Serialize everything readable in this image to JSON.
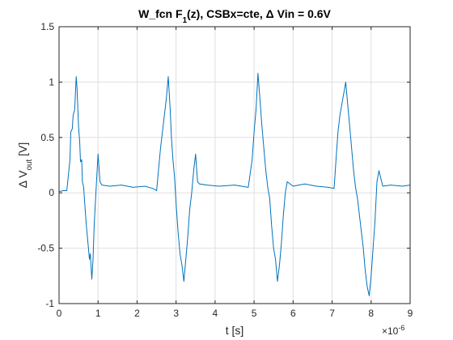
{
  "chart_data": {
    "type": "line",
    "title_parts": [
      {
        "t": "W_fcn F",
        "sub": false
      },
      {
        "t": "1",
        "sub": true
      },
      {
        "t": "(z), CSBx=cte, Δ Vin = 0.6V",
        "sub": false
      }
    ],
    "xlabel": "t [s]",
    "ylabel_parts": [
      {
        "t": "Δ V",
        "sub": false
      },
      {
        "t": "out",
        "sub": true
      },
      {
        "t": "  [V]",
        "sub": false
      }
    ],
    "x_exponent_base": "×10",
    "x_exponent": "-6",
    "xlim": [
      0,
      9
    ],
    "ylim": [
      -1,
      1.5
    ],
    "xticks": [
      0,
      1,
      2,
      3,
      4,
      5,
      6,
      7,
      8,
      9
    ],
    "xtick_labels": [
      "0",
      "1",
      "2",
      "3",
      "4",
      "5",
      "6",
      "7",
      "8",
      "9"
    ],
    "yticks": [
      -1,
      -0.5,
      0,
      0.5,
      1,
      1.5
    ],
    "ytick_labels": [
      "-1",
      "-0.5",
      "0",
      "0.5",
      "1",
      "1.5"
    ],
    "grid": true,
    "colors": {
      "line": "#0072BD",
      "grid": "#dfdfdf",
      "axis": "#262626"
    },
    "series": [
      {
        "x": [
          0,
          0.1,
          0.2,
          0.28,
          0.3,
          0.34,
          0.36,
          0.4,
          0.44,
          0.46,
          0.5,
          0.53,
          0.55,
          0.58,
          0.6,
          0.63,
          0.66,
          0.7,
          0.74,
          0.78,
          0.8,
          0.84,
          0.87,
          0.9,
          0.93,
          0.96,
          1.0,
          1.05,
          1.1,
          1.3,
          1.6,
          1.9,
          2.2,
          2.4,
          2.5,
          2.6,
          2.65,
          2.7,
          2.75,
          2.8,
          2.85,
          2.88,
          2.92,
          2.96,
          3.0,
          3.05,
          3.1,
          3.15,
          3.2,
          3.25,
          3.3,
          3.35,
          3.4,
          3.45,
          3.5,
          3.55,
          3.6,
          3.8,
          4.1,
          4.5,
          4.85,
          4.95,
          5.0,
          5.05,
          5.1,
          5.15,
          5.2,
          5.25,
          5.3,
          5.35,
          5.4,
          5.45,
          5.5,
          5.55,
          5.6,
          5.65,
          5.7,
          5.75,
          5.8,
          5.85,
          6.0,
          6.3,
          6.6,
          6.9,
          7.05,
          7.1,
          7.15,
          7.2,
          7.3,
          7.35,
          7.4,
          7.45,
          7.5,
          7.55,
          7.6,
          7.65,
          7.7,
          7.75,
          7.8,
          7.85,
          7.9,
          7.95,
          8.0,
          8.05,
          8.1,
          8.15,
          8.2,
          8.3,
          8.5,
          8.8,
          9.0
        ],
        "y": [
          0.01,
          0.02,
          0.02,
          0.3,
          0.55,
          0.58,
          0.7,
          0.75,
          1.05,
          0.95,
          0.6,
          0.45,
          0.28,
          0.3,
          0.1,
          0.05,
          -0.1,
          -0.3,
          -0.45,
          -0.6,
          -0.55,
          -0.78,
          -0.6,
          -0.3,
          -0.1,
          0.1,
          0.35,
          0.1,
          0.07,
          0.06,
          0.07,
          0.05,
          0.06,
          0.04,
          0.02,
          0.4,
          0.55,
          0.7,
          0.85,
          1.05,
          0.75,
          0.5,
          0.3,
          0.15,
          -0.1,
          -0.35,
          -0.55,
          -0.65,
          -0.8,
          -0.6,
          -0.4,
          -0.15,
          0.0,
          0.2,
          0.35,
          0.1,
          0.08,
          0.07,
          0.06,
          0.07,
          0.05,
          0.3,
          0.55,
          0.75,
          1.08,
          0.85,
          0.6,
          0.4,
          0.2,
          0.05,
          -0.05,
          -0.3,
          -0.5,
          -0.6,
          -0.8,
          -0.65,
          -0.45,
          -0.2,
          0.0,
          0.1,
          0.06,
          0.08,
          0.06,
          0.05,
          0.04,
          0.3,
          0.55,
          0.7,
          0.9,
          1.0,
          0.8,
          0.6,
          0.4,
          0.2,
          0.05,
          -0.05,
          -0.2,
          -0.35,
          -0.5,
          -0.7,
          -0.85,
          -0.93,
          -0.75,
          -0.5,
          -0.25,
          0.1,
          0.2,
          0.06,
          0.07,
          0.06,
          0.07
        ]
      }
    ]
  }
}
